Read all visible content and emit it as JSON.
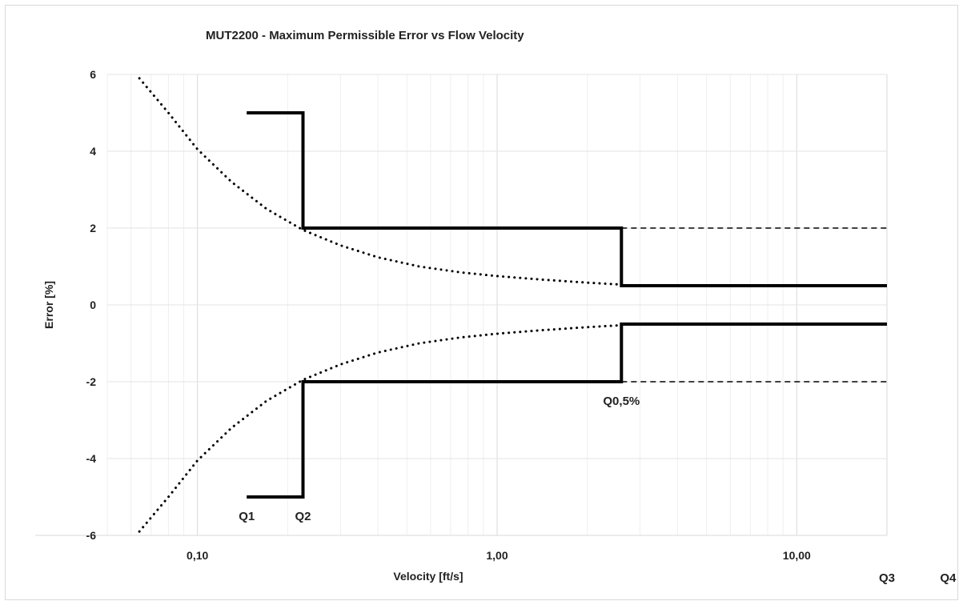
{
  "chart_data": {
    "type": "line",
    "title": "MUT2200 - Maximum Permissible Error vs Flow Velocity",
    "xlabel": "Velocity [ft/s]",
    "ylabel": "Error [%]",
    "x_scale": "log",
    "xlim": [
      0.05,
      20
    ],
    "ylim": [
      -6,
      6
    ],
    "x_ticks": [
      {
        "value": 0.1,
        "label": "0,10"
      },
      {
        "value": 1,
        "label": "1,00"
      },
      {
        "value": 10,
        "label": "10,00"
      }
    ],
    "y_ticks": [
      {
        "value": 6,
        "label": "6"
      },
      {
        "value": 4,
        "label": "4"
      },
      {
        "value": 2,
        "label": "2"
      },
      {
        "value": 0,
        "label": "0"
      },
      {
        "value": -2,
        "label": "-2"
      },
      {
        "value": -4,
        "label": "-4"
      },
      {
        "value": -6,
        "label": "-6"
      }
    ],
    "grid": true,
    "series": [
      {
        "style": "solid",
        "color": "#000000",
        "x": [
          0.146,
          0.225,
          0.225,
          2.6,
          2.6,
          20
        ],
        "y": [
          5,
          5,
          2,
          2,
          0.5,
          0.5
        ]
      },
      {
        "style": "solid",
        "color": "#000000",
        "x": [
          0.146,
          0.225,
          0.225,
          2.6,
          2.6,
          20
        ],
        "y": [
          -5,
          -5,
          -2,
          -2,
          -0.5,
          -0.5
        ]
      },
      {
        "style": "dashed",
        "color": "#000000",
        "x": [
          2.6,
          20
        ],
        "y": [
          2,
          2
        ]
      },
      {
        "style": "dashed",
        "color": "#000000",
        "x": [
          2.6,
          20
        ],
        "y": [
          -2,
          -2
        ]
      },
      {
        "style": "dotted",
        "color": "#000000",
        "x": [
          0.064,
          0.08,
          0.1,
          0.13,
          0.17,
          0.225,
          0.3,
          0.4,
          0.55,
          0.75,
          1.0,
          1.4,
          2.0,
          2.6
        ],
        "y": [
          5.9,
          5.0,
          4.05,
          3.2,
          2.5,
          1.95,
          1.55,
          1.24,
          1.0,
          0.85,
          0.75,
          0.66,
          0.58,
          0.53
        ]
      },
      {
        "style": "dotted",
        "color": "#000000",
        "x": [
          0.064,
          0.08,
          0.1,
          0.13,
          0.17,
          0.225,
          0.3,
          0.4,
          0.55,
          0.75,
          1.0,
          1.4,
          2.0,
          2.6
        ],
        "y": [
          -5.9,
          -5.0,
          -4.05,
          -3.2,
          -2.5,
          -1.95,
          -1.55,
          -1.24,
          -1.0,
          -0.85,
          -0.75,
          -0.66,
          -0.58,
          -0.53
        ]
      }
    ],
    "annotations": [
      {
        "text": "Q1",
        "x": 0.146,
        "y": -5.5
      },
      {
        "text": "Q2",
        "x": 0.225,
        "y": -5.5
      },
      {
        "text": "Q0,5%",
        "x": 2.6,
        "y": -2.5
      },
      {
        "text": "Q3",
        "x": 20,
        "y": -7.1
      },
      {
        "text": "Q4",
        "x": 32,
        "y": -7.1
      }
    ]
  }
}
